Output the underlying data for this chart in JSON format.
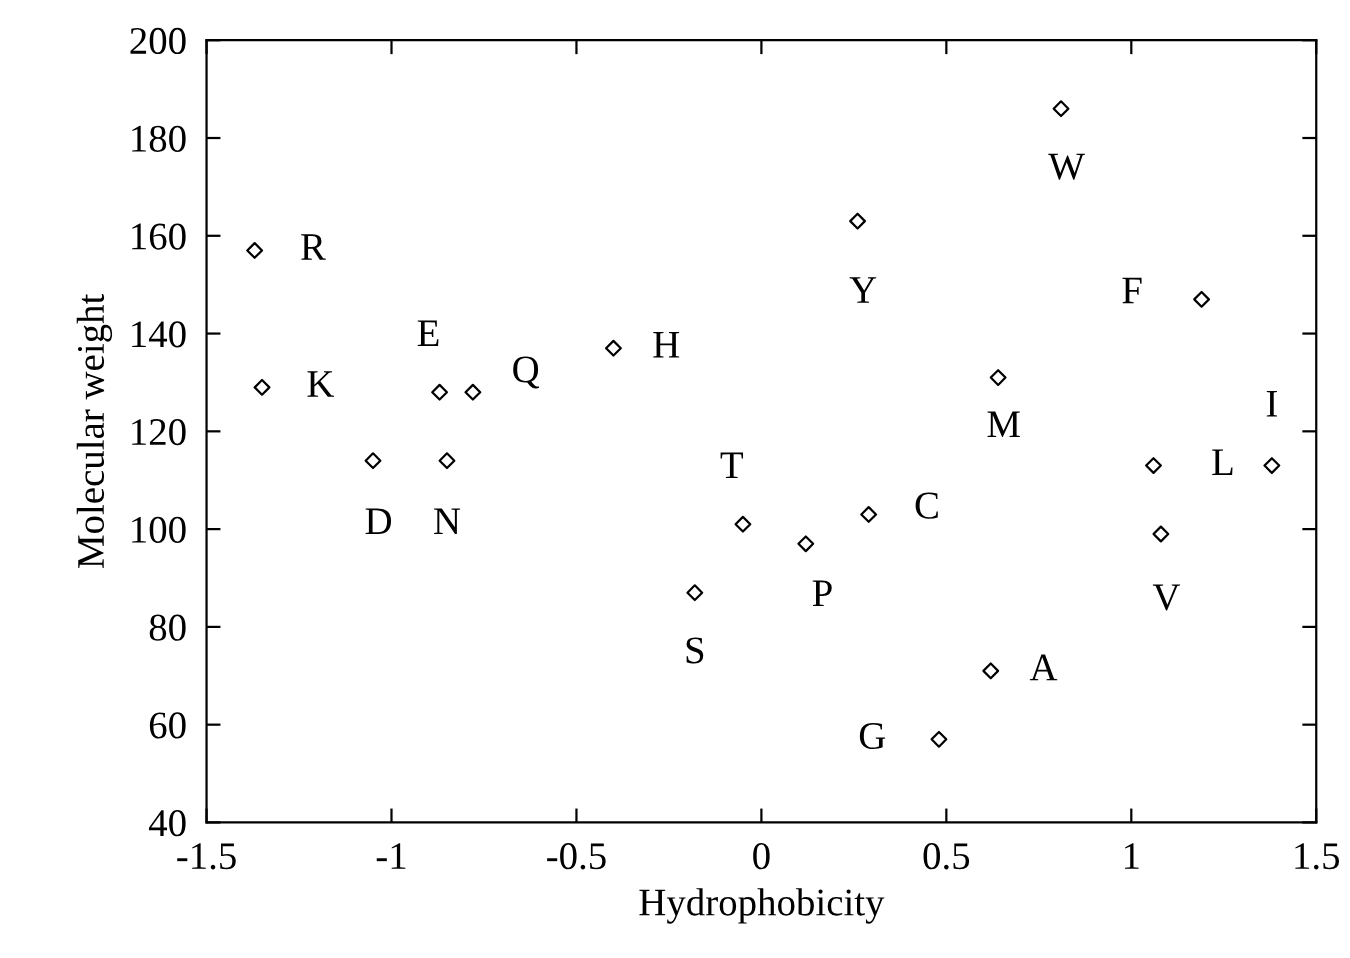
{
  "chart_data": {
    "type": "scatter",
    "xlabel": "Hydrophobicity",
    "ylabel": "Molecular weight",
    "x": [
      -1.37,
      -1.35,
      -1.05,
      -0.87,
      -0.78,
      -0.85,
      -0.4,
      -0.05,
      -0.18,
      0.12,
      0.29,
      0.26,
      0.48,
      0.62,
      0.64,
      0.81,
      1.19,
      1.06,
      1.08,
      1.38
    ],
    "series": [
      {
        "color": "#000000",
        "values": [
          157,
          129,
          114,
          128,
          128,
          114,
          137,
          101,
          87,
          97,
          103,
          163,
          57,
          71,
          131,
          186,
          147,
          113,
          99,
          113
        ]
      }
    ],
    "annotations": [
      {
        "text": "R",
        "x": -1.37,
        "y": 157
      },
      {
        "text": "K",
        "x": -1.35,
        "y": 129
      },
      {
        "text": "D",
        "x": -1.05,
        "y": 114
      },
      {
        "text": "E",
        "x": -0.87,
        "y": 128
      },
      {
        "text": "Q",
        "x": -0.78,
        "y": 128
      },
      {
        "text": "N",
        "x": -0.85,
        "y": 114
      },
      {
        "text": "H",
        "x": -0.4,
        "y": 137
      },
      {
        "text": "T",
        "x": -0.05,
        "y": 101
      },
      {
        "text": "S",
        "x": -0.18,
        "y": 87
      },
      {
        "text": "P",
        "x": 0.12,
        "y": 97
      },
      {
        "text": "C",
        "x": 0.29,
        "y": 103
      },
      {
        "text": "Y",
        "x": 0.26,
        "y": 163
      },
      {
        "text": "G",
        "x": 0.48,
        "y": 57
      },
      {
        "text": "A",
        "x": 0.62,
        "y": 71
      },
      {
        "text": "M",
        "x": 0.64,
        "y": 131
      },
      {
        "text": "W",
        "x": 0.81,
        "y": 186
      },
      {
        "text": "F",
        "x": 1.19,
        "y": 147
      },
      {
        "text": "L",
        "x": 1.06,
        "y": 113
      },
      {
        "text": "V",
        "x": 1.08,
        "y": 99
      },
      {
        "text": "I",
        "x": 1.38,
        "y": 113
      }
    ],
    "xlim": [
      -1.5,
      1.5
    ],
    "xticks": [
      {
        "value": -1.5,
        "label": "-1.5"
      },
      {
        "value": -1,
        "label": "-1"
      },
      {
        "value": -0.5,
        "label": "-0.5"
      },
      0,
      0.5,
      1,
      1.5
    ],
    "ylim": [
      40,
      200
    ],
    "yticks": [
      40,
      60,
      80,
      100,
      120,
      140,
      160,
      180,
      200
    ],
    "marker": "diamond",
    "grid": false
  }
}
